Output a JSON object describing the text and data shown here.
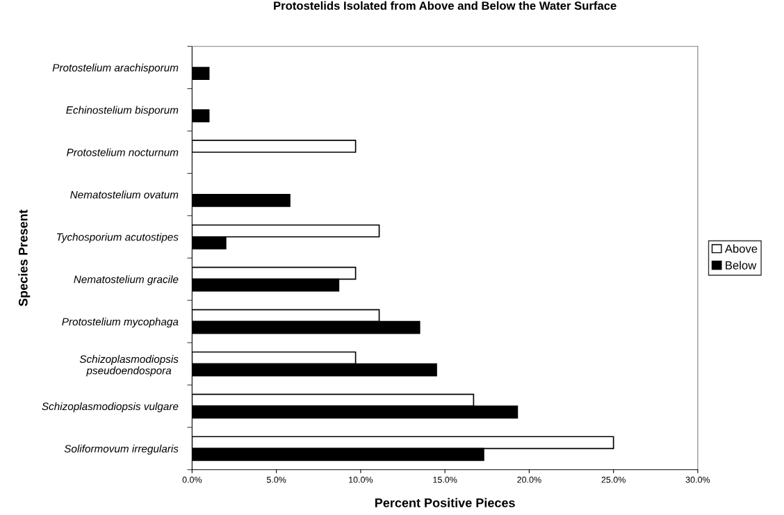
{
  "chart_data": {
    "type": "bar",
    "orientation": "horizontal",
    "title": "Protostelids Isolated from Above and Below the Water Surface",
    "xlabel": "Percent Positive Pieces",
    "ylabel": "Species Present",
    "categories": [
      "Protostelium arachisporum",
      "Echinostelium bisporum",
      "Protostelium nocturnum",
      "Nematostelium ovatum",
      "Tychosporium acutostipes",
      "Nematostelium gracile",
      "Protostelium mycophaga",
      "Schizoplasmodiopsis\npseudoendospora",
      "Schizoplasmodiopsis vulgare",
      "Soliformovum irregularis"
    ],
    "series": [
      {
        "name": "Above",
        "color": "#ffffff",
        "values": [
          null,
          null,
          9.7,
          null,
          11.1,
          9.7,
          11.1,
          9.7,
          16.7,
          25.0
        ]
      },
      {
        "name": "Below",
        "color": "#000000",
        "values": [
          1.0,
          1.0,
          null,
          5.8,
          2.0,
          8.7,
          13.5,
          14.5,
          19.3,
          17.3
        ]
      }
    ],
    "xlim": [
      0,
      30
    ],
    "xticks": [
      {
        "value": 0,
        "label": "0.0%"
      },
      {
        "value": 5,
        "label": "5.0%"
      },
      {
        "value": 10,
        "label": "10.0%"
      },
      {
        "value": 15,
        "label": "15.0%"
      },
      {
        "value": 20,
        "label": "20.0%"
      },
      {
        "value": 25,
        "label": "25.0%"
      },
      {
        "value": 30,
        "label": "30.0%"
      }
    ],
    "grid": false,
    "legend": "right"
  }
}
